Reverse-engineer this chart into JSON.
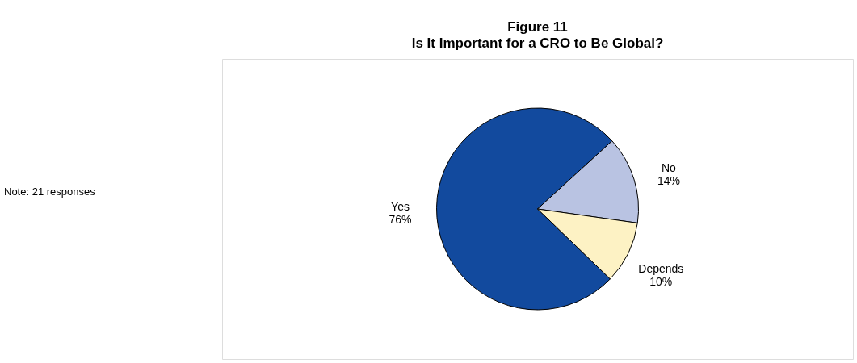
{
  "chart_data": {
    "type": "pie",
    "title": "Figure 11",
    "subtitle": "Is It Important for a CRO to Be Global?",
    "categories": [
      "Yes",
      "No",
      "Depends"
    ],
    "values": [
      76,
      14,
      10
    ],
    "value_labels": [
      "76%",
      "14%",
      "10%"
    ],
    "colors": [
      "#124a9e",
      "#b9c3e2",
      "#fdf2c4"
    ],
    "annotations": [
      "Note: 21 responses"
    ]
  }
}
